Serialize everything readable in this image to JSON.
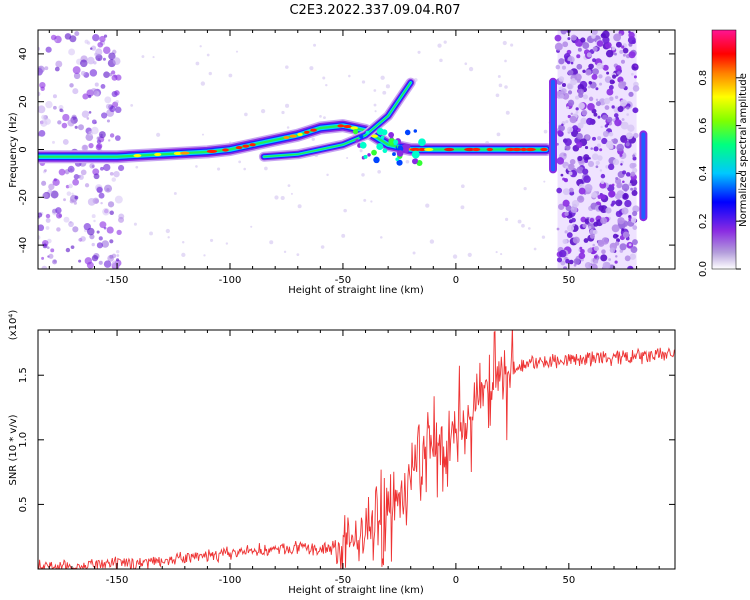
{
  "title": "C2E3.2022.337.09.04.R07",
  "chart_data": [
    {
      "type": "heatmap",
      "description_of_axes": "spectrogram",
      "xlabel": "Height of straight line (km)",
      "ylabel": "Frequency (Hz)",
      "xlim": [
        -185,
        97
      ],
      "ylim": [
        -50,
        50
      ],
      "x_ticks": [
        -150,
        -100,
        -50,
        0,
        50
      ],
      "y_ticks": [
        -40,
        -20,
        0,
        20,
        40
      ],
      "colorbar": {
        "label": "Normalized spectral amplitude",
        "range": [
          0.0,
          1.0
        ],
        "ticks": [
          "0.0",
          "0.2",
          "0.4",
          "0.6",
          "0.8"
        ],
        "colormap": "rainbow",
        "colors": [
          "#ffffff",
          "#8a2be2",
          "#0000ff",
          "#00ffff",
          "#00ff00",
          "#ffff00",
          "#ff0000",
          "#ff00aa"
        ]
      },
      "noise_bands": [
        [
          -185,
          -148
        ],
        [
          45,
          80
        ]
      ],
      "main_trace": [
        [
          -185,
          -3
        ],
        [
          -160,
          -3
        ],
        [
          -150,
          -3
        ],
        [
          -130,
          -2
        ],
        [
          -110,
          -1
        ],
        [
          -100,
          0
        ],
        [
          -90,
          2
        ],
        [
          -80,
          4
        ],
        [
          -70,
          6
        ],
        [
          -60,
          9
        ],
        [
          -50,
          10
        ],
        [
          -40,
          8
        ],
        [
          -30,
          2
        ],
        [
          -20,
          0
        ],
        [
          -10,
          0
        ],
        [
          0,
          0
        ],
        [
          20,
          0
        ],
        [
          40,
          0
        ]
      ],
      "secondary_trace": [
        [
          -85,
          -3
        ],
        [
          -70,
          -2
        ],
        [
          -60,
          0
        ],
        [
          -50,
          2
        ],
        [
          -40,
          6
        ],
        [
          -30,
          14
        ],
        [
          -20,
          28
        ]
      ],
      "spikes": [
        {
          "x": 43,
          "fmin": -10,
          "fmax": 30
        },
        {
          "x": 83,
          "fmin": -30,
          "fmax": 8
        }
      ]
    },
    {
      "type": "line",
      "xlabel": "Height of straight line (km)",
      "ylabel": "SNR (10 * v/v)",
      "y_scale_label": "(x10⁴)",
      "xlim": [
        -185,
        97
      ],
      "ylim": [
        0,
        1.85
      ],
      "x_ticks": [
        -150,
        -100,
        -50,
        0,
        50
      ],
      "y_ticks": [
        0.5,
        1.0,
        1.5
      ],
      "color": "#ee3333",
      "series": [
        {
          "x": [
            -185,
            -170,
            -160,
            -150,
            -140,
            -130,
            -120,
            -110,
            -100,
            -90,
            -80,
            -70,
            -60,
            -50,
            -40,
            -30,
            -25,
            -20,
            -15,
            -10,
            -5,
            0,
            5,
            10,
            15,
            20,
            25,
            30,
            35,
            40,
            45,
            50,
            60,
            70,
            80,
            90,
            97
          ],
          "y": [
            0.02,
            0.02,
            0.03,
            0.04,
            0.05,
            0.07,
            0.08,
            0.1,
            0.12,
            0.14,
            0.15,
            0.16,
            0.15,
            0.18,
            0.25,
            0.45,
            0.55,
            0.7,
            0.85,
            0.95,
            1.0,
            1.05,
            1.15,
            1.3,
            1.4,
            1.5,
            1.55,
            1.58,
            1.6,
            1.6,
            1.62,
            1.62,
            1.63,
            1.63,
            1.64,
            1.65,
            1.68
          ]
        }
      ]
    }
  ]
}
